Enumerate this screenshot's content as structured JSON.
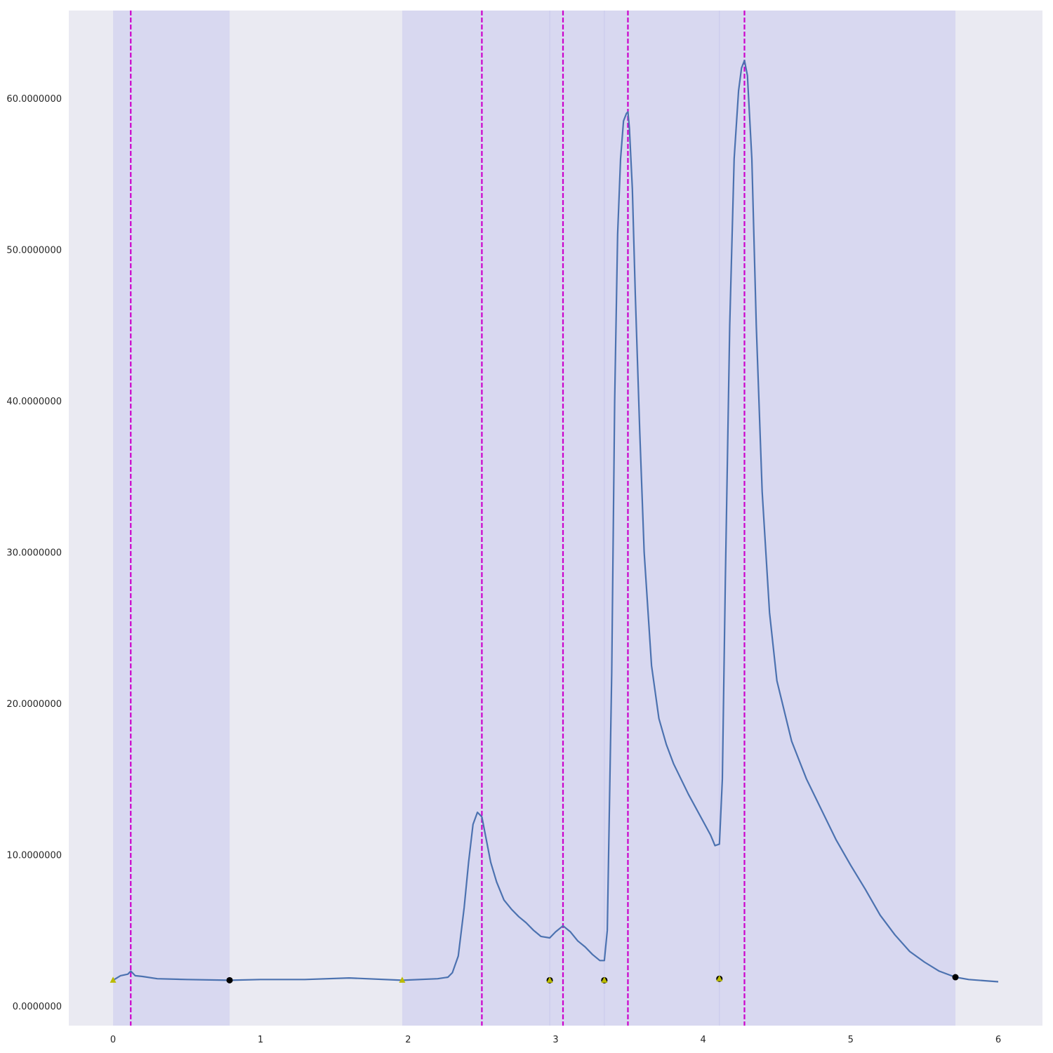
{
  "chart_data": {
    "type": "line",
    "title": "",
    "xlabel": "",
    "ylabel": "",
    "xlim": [
      -0.3,
      6.3
    ],
    "ylim": [
      -1.3,
      65.8
    ],
    "x_ticks": [
      {
        "value": 0,
        "label": "0"
      },
      {
        "value": 1,
        "label": "1"
      },
      {
        "value": 2,
        "label": "2"
      },
      {
        "value": 3,
        "label": "3"
      },
      {
        "value": 4,
        "label": "4"
      },
      {
        "value": 5,
        "label": "5"
      },
      {
        "value": 6,
        "label": "6"
      }
    ],
    "y_ticks": [
      {
        "value": 0,
        "label": "0.0000000"
      },
      {
        "value": 10,
        "label": "10.0000000"
      },
      {
        "value": 20,
        "label": "20.0000000"
      },
      {
        "value": 30,
        "label": "30.0000000"
      },
      {
        "value": 40,
        "label": "40.0000000"
      },
      {
        "value": 50,
        "label": "50.0000000"
      },
      {
        "value": 60,
        "label": "60.0000000"
      }
    ],
    "grid": false,
    "colors": {
      "plot_background": "#eaeaf2",
      "shaded_region": "#d8d8f0",
      "line": "#4c72b0",
      "peak_marker_line": "#cc00cc",
      "start_marker": "#bbbb00",
      "end_marker": "#000000"
    },
    "shaded_regions": [
      {
        "x_start": 0.0,
        "x_end": 0.79
      },
      {
        "x_start": 1.96,
        "x_end": 5.71
      }
    ],
    "faint_boundaries": [
      2.96,
      3.33,
      4.11
    ],
    "peak_lines": [
      0.12,
      2.5,
      3.05,
      3.49,
      4.28
    ],
    "start_markers": [
      {
        "x": 0.0,
        "y": 1.7
      },
      {
        "x": 1.96,
        "y": 1.7
      },
      {
        "x": 2.96,
        "y": 1.7
      },
      {
        "x": 3.33,
        "y": 1.7
      },
      {
        "x": 4.11,
        "y": 1.8
      }
    ],
    "end_markers": [
      {
        "x": 0.79,
        "y": 1.7
      },
      {
        "x": 2.96,
        "y": 1.7
      },
      {
        "x": 3.33,
        "y": 1.7
      },
      {
        "x": 4.11,
        "y": 1.8
      },
      {
        "x": 5.71,
        "y": 1.9
      }
    ],
    "series": [
      {
        "x": [
          0.0,
          0.05,
          0.1,
          0.12,
          0.15,
          0.2,
          0.3,
          0.5,
          0.79,
          1.0,
          1.3,
          1.6,
          1.96,
          2.2,
          2.27,
          2.3,
          2.34,
          2.38,
          2.41,
          2.44,
          2.47,
          2.5,
          2.53,
          2.56,
          2.6,
          2.65,
          2.7,
          2.75,
          2.8,
          2.85,
          2.9,
          2.96,
          3.0,
          3.05,
          3.1,
          3.15,
          3.2,
          3.25,
          3.3,
          3.33,
          3.35,
          3.38,
          3.4,
          3.42,
          3.44,
          3.46,
          3.48,
          3.49,
          3.5,
          3.52,
          3.54,
          3.57,
          3.6,
          3.65,
          3.7,
          3.75,
          3.8,
          3.9,
          4.0,
          4.05,
          4.08,
          4.11,
          4.13,
          4.15,
          4.18,
          4.21,
          4.24,
          4.26,
          4.28,
          4.3,
          4.33,
          4.36,
          4.4,
          4.45,
          4.5,
          4.6,
          4.7,
          4.8,
          4.9,
          5.0,
          5.1,
          5.2,
          5.3,
          5.4,
          5.5,
          5.6,
          5.71,
          5.8,
          6.0
        ],
        "y": [
          1.7,
          2.0,
          2.1,
          2.3,
          2.0,
          1.95,
          1.8,
          1.75,
          1.7,
          1.75,
          1.75,
          1.85,
          1.7,
          1.8,
          1.9,
          2.2,
          3.3,
          6.5,
          9.5,
          12.0,
          12.8,
          12.5,
          11.0,
          9.5,
          8.2,
          7.0,
          6.4,
          5.9,
          5.5,
          5.0,
          4.6,
          4.5,
          4.9,
          5.3,
          4.9,
          4.3,
          3.9,
          3.4,
          3.0,
          3.0,
          5.0,
          22.0,
          40.0,
          51.0,
          56.0,
          58.5,
          59.0,
          59.1,
          58.0,
          54.0,
          47.0,
          38.0,
          30.0,
          22.5,
          19.0,
          17.3,
          16.0,
          14.0,
          12.2,
          11.3,
          10.6,
          10.7,
          15.0,
          28.0,
          45.0,
          56.0,
          60.5,
          62.0,
          62.5,
          61.5,
          56.0,
          45.0,
          34.0,
          26.0,
          21.5,
          17.5,
          15.0,
          13.0,
          11.0,
          9.3,
          7.7,
          6.0,
          4.7,
          3.6,
          2.9,
          2.3,
          1.9,
          1.75,
          1.6
        ]
      }
    ]
  }
}
